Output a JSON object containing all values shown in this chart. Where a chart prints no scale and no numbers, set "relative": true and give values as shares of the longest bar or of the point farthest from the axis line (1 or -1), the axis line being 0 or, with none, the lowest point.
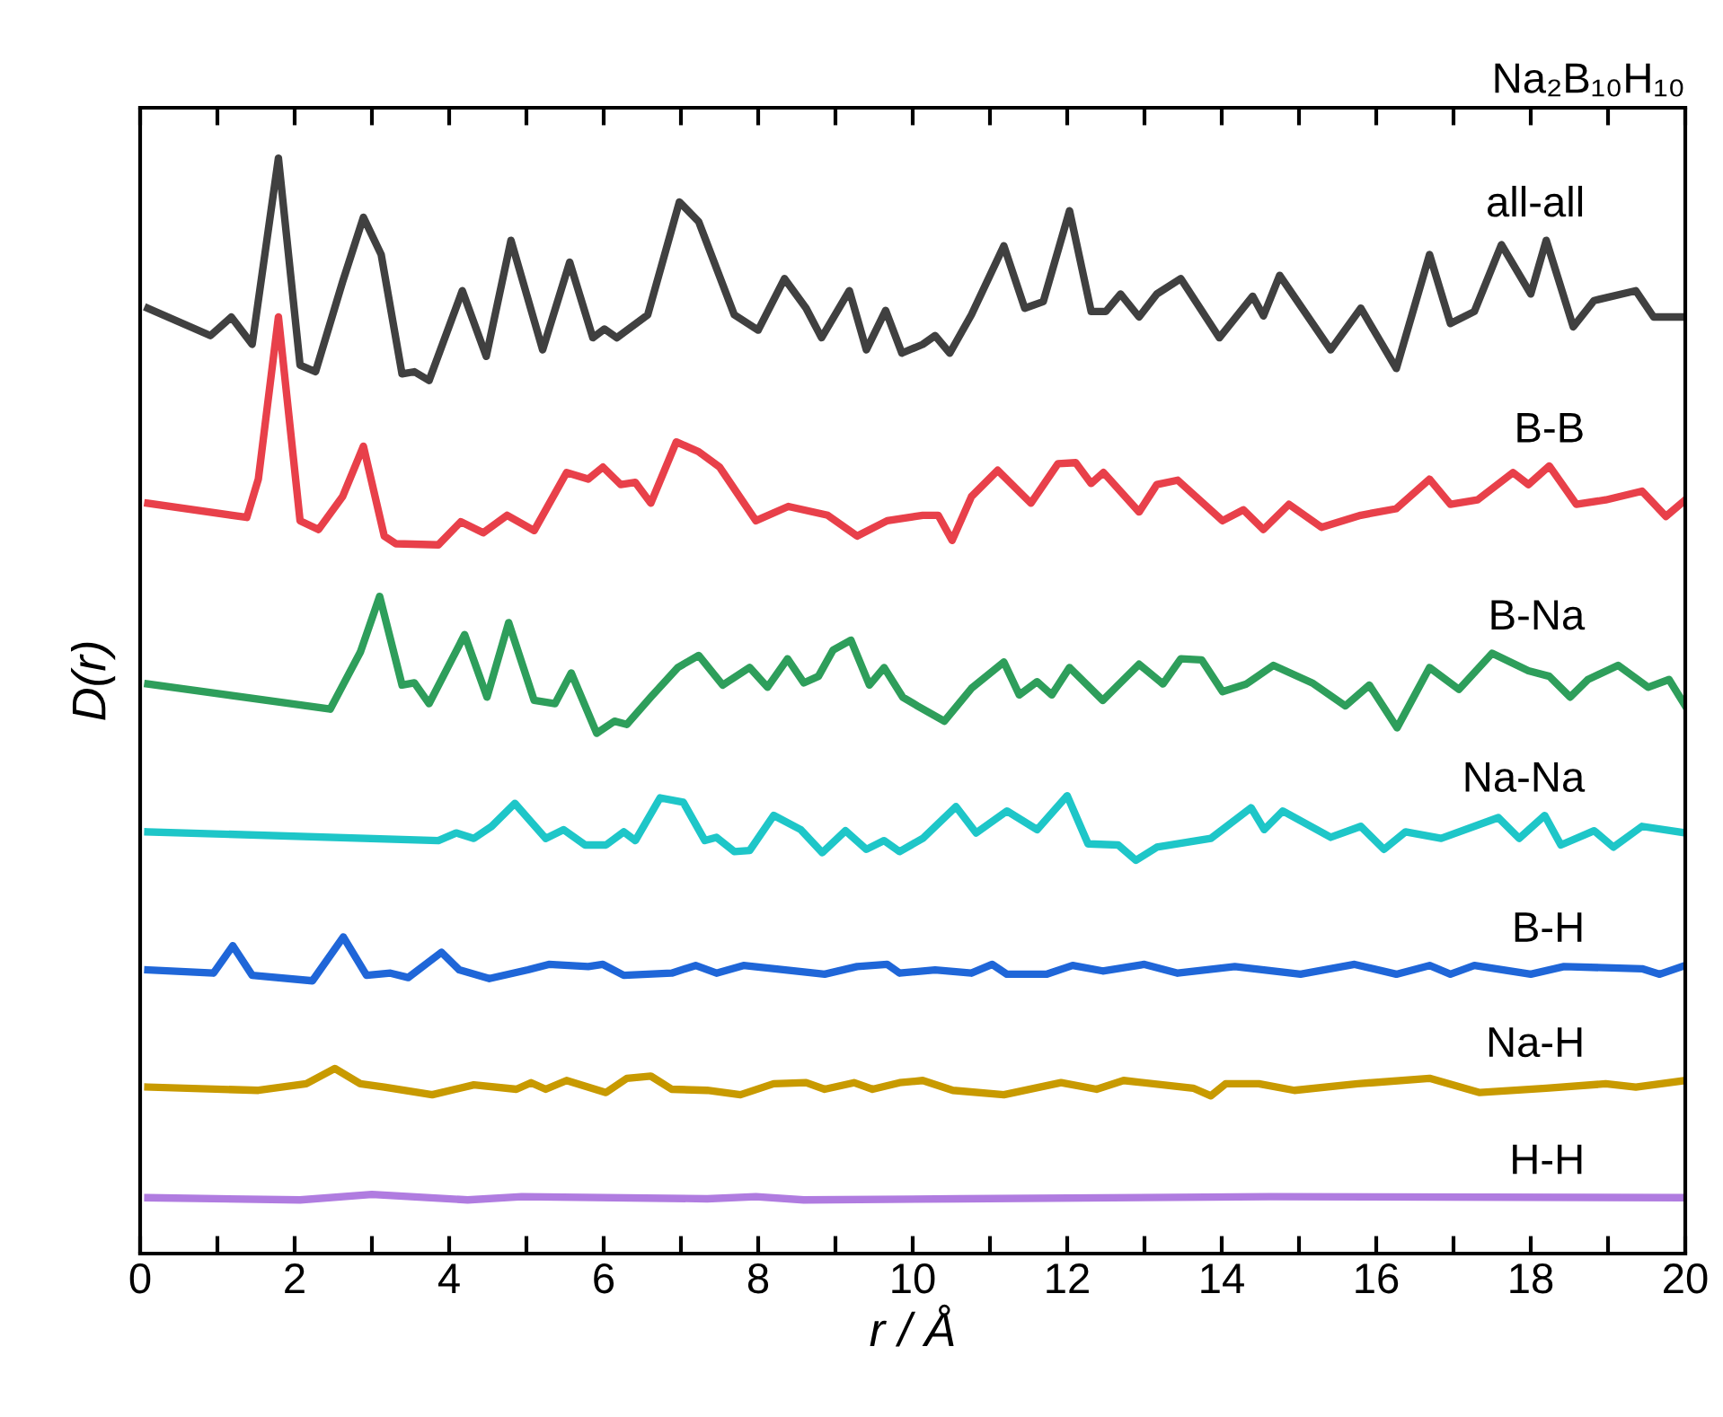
{
  "chart_data": {
    "type": "line",
    "title": "Na₂B₁₀H₁₀",
    "xlabel": "r / Å",
    "ylabel": "D(r)",
    "relative": true,
    "tick_labels": "x",
    "xlim": [
      0,
      20
    ],
    "xticks": [
      0,
      {
        "value": 1,
        "label": null
      },
      2,
      {
        "value": 3,
        "label": null
      },
      4,
      {
        "value": 5,
        "label": null
      },
      6,
      {
        "value": 7,
        "label": null
      },
      8,
      {
        "value": 9,
        "label": null
      },
      10,
      {
        "value": 11,
        "label": null
      },
      12,
      {
        "value": 13,
        "label": null
      },
      14,
      {
        "value": 15,
        "label": null
      },
      16,
      {
        "value": 17,
        "label": null
      },
      18,
      {
        "value": 19,
        "label": null
      },
      20
    ],
    "grid": false,
    "legend": false,
    "marker": "none",
    "line_style": "solid",
    "series": [
      {
        "name": "all-all",
        "color": "#404040",
        "x": [
          0.1,
          0.91,
          1.18,
          1.45,
          1.79,
          2.07,
          2.27,
          2.62,
          2.89,
          3.12,
          3.39,
          3.55,
          3.74,
          4.17,
          4.48,
          4.8,
          5.21,
          5.56,
          5.86,
          6.01,
          6.17,
          6.57,
          6.98,
          7.23,
          7.69,
          8.0,
          8.34,
          8.62,
          8.82,
          9.18,
          9.4,
          9.65,
          9.86,
          10.13,
          10.29,
          10.48,
          10.76,
          11.18,
          11.45,
          11.69,
          12.03,
          12.31,
          12.5,
          12.69,
          12.93,
          13.16,
          13.47,
          13.97,
          14.4,
          14.54,
          14.75,
          15.41,
          15.8,
          16.26,
          16.69,
          16.96,
          17.27,
          17.62,
          18.0,
          18.2,
          18.55,
          18.82,
          19.36,
          19.59,
          20.0
        ],
        "values": [
          0.863,
          0.838,
          0.855,
          0.83,
          1.0,
          0.811,
          0.805,
          0.887,
          0.946,
          0.912,
          0.803,
          0.805,
          0.797,
          0.879,
          0.819,
          0.925,
          0.825,
          0.905,
          0.836,
          0.844,
          0.836,
          0.857,
          0.96,
          0.942,
          0.857,
          0.843,
          0.89,
          0.863,
          0.836,
          0.879,
          0.825,
          0.861,
          0.822,
          0.83,
          0.838,
          0.822,
          0.857,
          0.92,
          0.863,
          0.869,
          0.952,
          0.86,
          0.86,
          0.876,
          0.855,
          0.876,
          0.89,
          0.836,
          0.874,
          0.856,
          0.893,
          0.825,
          0.863,
          0.808,
          0.912,
          0.849,
          0.86,
          0.921,
          0.876,
          0.925,
          0.846,
          0.87,
          0.879,
          0.855,
          0.855
        ]
      },
      {
        "name": "B-B",
        "color": "#e8404a",
        "x": [
          0.1,
          1.38,
          1.53,
          1.79,
          2.07,
          2.31,
          2.62,
          2.89,
          3.16,
          3.31,
          3.86,
          4.15,
          4.44,
          4.75,
          5.1,
          5.52,
          5.8,
          5.99,
          6.22,
          6.41,
          6.61,
          6.94,
          7.23,
          7.5,
          7.97,
          8.39,
          8.9,
          9.28,
          9.67,
          10.13,
          10.33,
          10.51,
          10.76,
          11.1,
          11.53,
          11.88,
          12.11,
          12.31,
          12.47,
          12.93,
          13.16,
          13.43,
          14.01,
          14.28,
          14.54,
          14.87,
          15.29,
          15.8,
          16.26,
          16.69,
          16.96,
          17.31,
          17.77,
          17.97,
          18.24,
          18.59,
          18.97,
          19.44,
          19.75,
          20.0
        ],
        "values": [
          0.685,
          0.672,
          0.707,
          0.855,
          0.669,
          0.661,
          0.691,
          0.737,
          0.655,
          0.648,
          0.647,
          0.668,
          0.658,
          0.674,
          0.66,
          0.713,
          0.707,
          0.718,
          0.702,
          0.704,
          0.685,
          0.741,
          0.732,
          0.718,
          0.669,
          0.682,
          0.674,
          0.655,
          0.669,
          0.674,
          0.674,
          0.651,
          0.691,
          0.715,
          0.685,
          0.721,
          0.722,
          0.703,
          0.713,
          0.677,
          0.702,
          0.706,
          0.669,
          0.679,
          0.661,
          0.684,
          0.663,
          0.674,
          0.68,
          0.707,
          0.684,
          0.688,
          0.713,
          0.702,
          0.719,
          0.684,
          0.688,
          0.696,
          0.673,
          0.688
        ]
      },
      {
        "name": "B-Na",
        "color": "#2e9e5b",
        "x": [
          0.1,
          2.46,
          2.85,
          3.1,
          3.39,
          3.55,
          3.74,
          4.2,
          4.49,
          4.77,
          5.1,
          5.37,
          5.58,
          5.91,
          6.14,
          6.3,
          6.61,
          6.96,
          7.23,
          7.54,
          7.89,
          8.12,
          8.38,
          8.59,
          8.78,
          8.97,
          9.2,
          9.44,
          9.63,
          9.87,
          10.06,
          10.41,
          10.76,
          11.18,
          11.38,
          11.61,
          11.8,
          12.03,
          12.46,
          12.93,
          13.24,
          13.47,
          13.74,
          14.01,
          14.32,
          14.67,
          15.17,
          15.6,
          15.91,
          16.27,
          16.69,
          17.07,
          17.5,
          17.97,
          18.24,
          18.51,
          18.74,
          19.13,
          19.52,
          19.79,
          20.0
        ],
        "values": [
          0.52,
          0.497,
          0.549,
          0.6,
          0.519,
          0.521,
          0.502,
          0.565,
          0.508,
          0.576,
          0.505,
          0.502,
          0.53,
          0.475,
          0.486,
          0.483,
          0.508,
          0.535,
          0.546,
          0.519,
          0.535,
          0.517,
          0.543,
          0.521,
          0.527,
          0.551,
          0.56,
          0.519,
          0.535,
          0.508,
          0.5,
          0.486,
          0.516,
          0.54,
          0.51,
          0.522,
          0.51,
          0.535,
          0.505,
          0.538,
          0.52,
          0.543,
          0.542,
          0.513,
          0.52,
          0.537,
          0.521,
          0.5,
          0.519,
          0.48,
          0.535,
          0.515,
          0.548,
          0.532,
          0.527,
          0.508,
          0.524,
          0.537,
          0.517,
          0.524,
          0.5
        ]
      },
      {
        "name": "Na-Na",
        "color": "#1ec6c8",
        "x": [
          0.1,
          3.86,
          4.09,
          4.32,
          4.55,
          4.85,
          5.25,
          5.48,
          5.76,
          6.03,
          6.26,
          6.41,
          6.73,
          7.03,
          7.31,
          7.46,
          7.69,
          7.89,
          8.2,
          8.55,
          8.83,
          9.13,
          9.4,
          9.63,
          9.83,
          10.13,
          10.56,
          10.82,
          11.22,
          11.61,
          12.0,
          12.27,
          12.66,
          12.89,
          13.16,
          13.86,
          14.38,
          14.55,
          14.79,
          15.41,
          15.8,
          16.1,
          16.38,
          16.84,
          17.58,
          17.85,
          18.18,
          18.39,
          18.82,
          19.07,
          19.44,
          20.0
        ],
        "values": [
          0.385,
          0.377,
          0.384,
          0.379,
          0.39,
          0.411,
          0.379,
          0.387,
          0.373,
          0.373,
          0.385,
          0.377,
          0.416,
          0.412,
          0.377,
          0.38,
          0.367,
          0.368,
          0.4,
          0.387,
          0.366,
          0.386,
          0.369,
          0.377,
          0.367,
          0.379,
          0.408,
          0.384,
          0.404,
          0.387,
          0.418,
          0.374,
          0.373,
          0.359,
          0.371,
          0.379,
          0.407,
          0.387,
          0.404,
          0.38,
          0.39,
          0.369,
          0.385,
          0.379,
          0.398,
          0.379,
          0.4,
          0.373,
          0.386,
          0.371,
          0.39,
          0.384
        ]
      },
      {
        "name": "B-H",
        "color": "#1f66d8",
        "x": [
          0.1,
          0.95,
          1.2,
          1.45,
          2.23,
          2.63,
          2.93,
          3.24,
          3.47,
          3.9,
          4.13,
          4.52,
          5.02,
          5.29,
          5.8,
          5.99,
          6.26,
          6.88,
          7.19,
          7.46,
          7.81,
          8.35,
          8.86,
          9.28,
          9.67,
          9.83,
          10.29,
          10.76,
          11.03,
          11.22,
          11.73,
          12.07,
          12.46,
          13.0,
          13.43,
          14.17,
          15.02,
          15.72,
          16.26,
          16.69,
          16.96,
          17.27,
          18.0,
          18.43,
          19.44,
          19.67,
          20.0
        ],
        "values": [
          0.259,
          0.256,
          0.281,
          0.254,
          0.249,
          0.289,
          0.254,
          0.256,
          0.252,
          0.275,
          0.259,
          0.251,
          0.259,
          0.264,
          0.262,
          0.264,
          0.254,
          0.256,
          0.263,
          0.256,
          0.263,
          0.259,
          0.255,
          0.262,
          0.264,
          0.256,
          0.259,
          0.256,
          0.264,
          0.255,
          0.255,
          0.263,
          0.258,
          0.264,
          0.256,
          0.262,
          0.255,
          0.264,
          0.255,
          0.263,
          0.255,
          0.263,
          0.255,
          0.262,
          0.26,
          0.255,
          0.263
        ]
      },
      {
        "name": "Na-H",
        "color": "#c89a00",
        "x": [
          0.1,
          1.53,
          2.15,
          2.52,
          2.85,
          3.16,
          3.78,
          4.32,
          4.87,
          5.06,
          5.25,
          5.52,
          6.03,
          6.3,
          6.61,
          6.88,
          7.34,
          7.77,
          8.2,
          8.62,
          8.86,
          9.24,
          9.48,
          9.83,
          10.13,
          10.52,
          11.18,
          11.92,
          12.38,
          12.73,
          13.63,
          13.86,
          14.05,
          14.48,
          14.94,
          15.76,
          16.69,
          17.34,
          18.2,
          18.97,
          19.36,
          20.0
        ],
        "values": [
          0.152,
          0.149,
          0.155,
          0.169,
          0.155,
          0.152,
          0.145,
          0.154,
          0.15,
          0.156,
          0.15,
          0.158,
          0.147,
          0.16,
          0.162,
          0.15,
          0.149,
          0.145,
          0.155,
          0.156,
          0.15,
          0.156,
          0.15,
          0.156,
          0.158,
          0.149,
          0.145,
          0.156,
          0.15,
          0.158,
          0.151,
          0.144,
          0.155,
          0.155,
          0.149,
          0.155,
          0.16,
          0.147,
          0.151,
          0.155,
          0.152,
          0.158
        ]
      },
      {
        "name": "H-H",
        "color": "#b07ce0",
        "x": [
          0.1,
          2.07,
          3.0,
          4.24,
          4.94,
          7.34,
          7.97,
          8.59,
          10.6,
          14.63,
          20.0
        ],
        "values": [
          0.051,
          0.049,
          0.054,
          0.049,
          0.052,
          0.05,
          0.052,
          0.049,
          0.05,
          0.052,
          0.051
        ]
      }
    ]
  }
}
